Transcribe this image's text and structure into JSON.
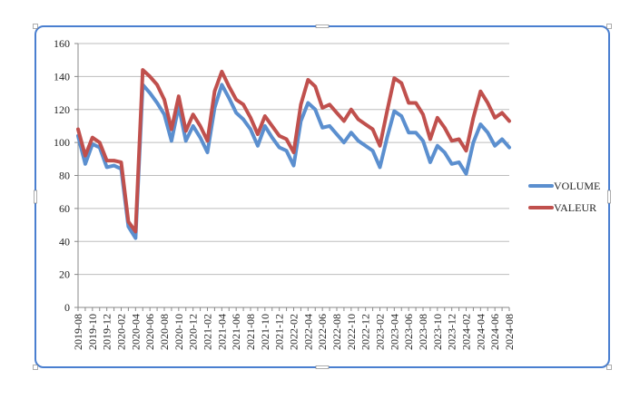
{
  "chart_data": {
    "type": "line",
    "title": "",
    "xlabel": "",
    "ylabel": "",
    "ylim": [
      0,
      160
    ],
    "yticks": [
      0,
      20,
      40,
      60,
      80,
      100,
      120,
      140,
      160
    ],
    "grid": "horizontal",
    "legend_position": "right",
    "x": [
      "2019-08",
      "2019-09",
      "2019-10",
      "2019-11",
      "2019-12",
      "2020-01",
      "2020-02",
      "2020-03",
      "2020-04",
      "2020-05",
      "2020-06",
      "2020-07",
      "2020-08",
      "2020-09",
      "2020-10",
      "2020-11",
      "2020-12",
      "2021-01",
      "2021-02",
      "2021-03",
      "2021-04",
      "2021-05",
      "2021-06",
      "2021-07",
      "2021-08",
      "2021-09",
      "2021-10",
      "2021-11",
      "2021-12",
      "2022-01",
      "2022-02",
      "2022-03",
      "2022-04",
      "2022-05",
      "2022-06",
      "2022-07",
      "2022-08",
      "2022-09",
      "2022-10",
      "2022-11",
      "2022-12",
      "2023-01",
      "2023-02",
      "2023-03",
      "2023-04",
      "2023-05",
      "2023-06",
      "2023-07",
      "2023-08",
      "2023-09",
      "2023-10",
      "2023-11",
      "2023-12",
      "2024-01",
      "2024-02",
      "2024-03",
      "2024-04",
      "2024-05",
      "2024-06",
      "2024-07",
      "2024-08"
    ],
    "tick_labels": [
      "2019-08",
      "2019-10",
      "2019-12",
      "2020-02",
      "2020-04",
      "2020-06",
      "2020-08",
      "2020-10",
      "2020-12",
      "2021-02",
      "2021-04",
      "2021-06",
      "2021-08",
      "2021-10",
      "2021-12",
      "2022-02",
      "2022-04",
      "2022-06",
      "2022-08",
      "2022-10",
      "2022-12",
      "2023-02",
      "2023-04",
      "2023-06",
      "2023-08",
      "2023-10",
      "2023-12",
      "2024-02",
      "2024-04",
      "2024-06",
      "2024-08"
    ],
    "series": [
      {
        "name": "VOLUME",
        "color": "#5b8fcf",
        "values": [
          104,
          87,
          99,
          97,
          85,
          86,
          84,
          49,
          42,
          135,
          130,
          124,
          117,
          101,
          122,
          101,
          110,
          103,
          94,
          121,
          135,
          127,
          118,
          114,
          108,
          98,
          110,
          103,
          97,
          95,
          86,
          113,
          124,
          120,
          109,
          110,
          105,
          100,
          106,
          101,
          98,
          95,
          85,
          103,
          119,
          116,
          106,
          106,
          101,
          88,
          98,
          94,
          87,
          88,
          81,
          100,
          111,
          106,
          98,
          102,
          97
        ]
      },
      {
        "name": "VALEUR",
        "color": "#c0504d",
        "values": [
          108,
          92,
          103,
          100,
          89,
          89,
          88,
          52,
          46,
          144,
          140,
          135,
          126,
          108,
          128,
          107,
          117,
          110,
          101,
          131,
          143,
          134,
          126,
          123,
          115,
          105,
          116,
          110,
          104,
          102,
          94,
          123,
          138,
          134,
          121,
          123,
          118,
          113,
          120,
          114,
          111,
          108,
          98,
          119,
          139,
          136,
          124,
          124,
          117,
          102,
          115,
          109,
          101,
          102,
          95,
          115,
          131,
          124,
          115,
          118,
          113
        ]
      }
    ]
  }
}
